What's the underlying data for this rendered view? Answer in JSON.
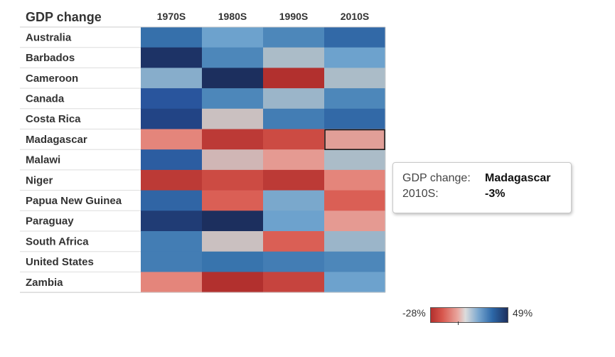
{
  "chart_data": {
    "type": "heatmap",
    "title": "GDP change",
    "columns": [
      "1970S",
      "1980S",
      "1990S",
      "2010S"
    ],
    "rows": [
      "Australia",
      "Barbados",
      "Cameroon",
      "Canada",
      "Costa Rica",
      "Madagascar",
      "Malawi",
      "Niger",
      "Papua New Guinea",
      "Paraguay",
      "South Africa",
      "United States",
      "Zambia"
    ],
    "values": [
      [
        33,
        22,
        28,
        35
      ],
      [
        48,
        28,
        12,
        22
      ],
      [
        18,
        49,
        -28,
        12
      ],
      [
        40,
        28,
        15,
        28
      ],
      [
        44,
        5,
        30,
        35
      ],
      [
        -8,
        -25,
        -20,
        -3
      ],
      [
        38,
        2,
        -4,
        12
      ],
      [
        -25,
        -20,
        -25,
        -8
      ],
      [
        36,
        -15,
        20,
        -15
      ],
      [
        46,
        49,
        22,
        -4
      ],
      [
        30,
        5,
        -15,
        15
      ],
      [
        30,
        32,
        30,
        28
      ],
      [
        -8,
        -28,
        -22,
        22
      ]
    ],
    "color_range": [
      -28,
      49
    ],
    "colors": {
      "low": "#b2302e",
      "mid": "#dcdcdc",
      "high": "#1c2f5e"
    },
    "selected": {
      "row": 5,
      "col": 3
    },
    "legend": {
      "min_label": "-28%",
      "max_label": "49%",
      "placement": "bottom-right"
    }
  },
  "tooltip": {
    "label1": "GDP change:",
    "value1": "Madagascar",
    "label2": "2010S:",
    "value2": "-3%"
  }
}
